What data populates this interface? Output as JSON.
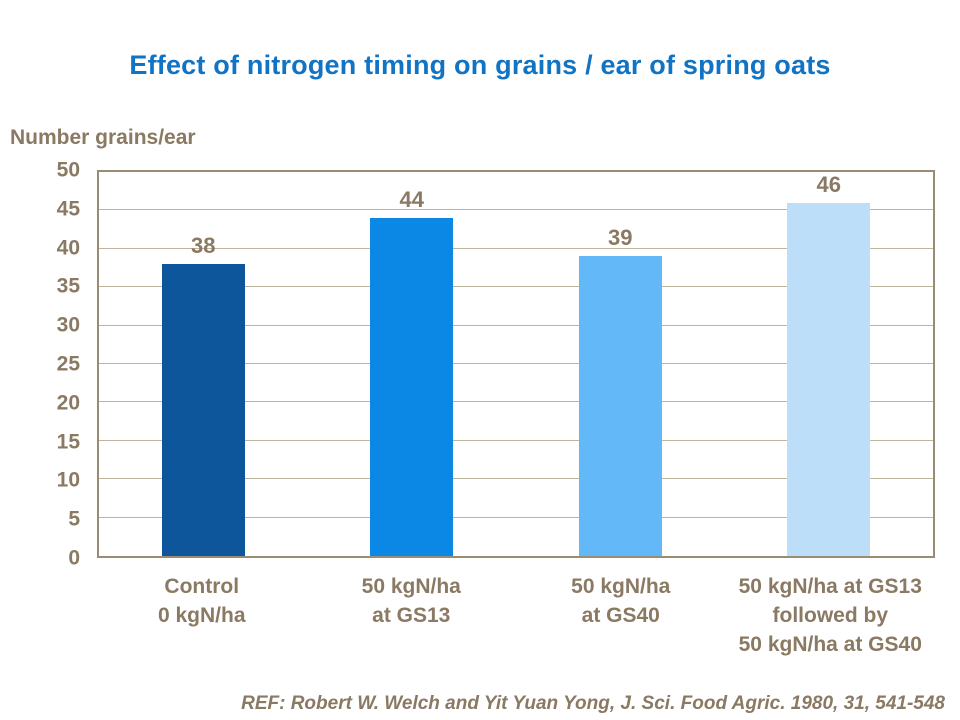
{
  "slide": {
    "title": "Effect of nitrogen timing on grains / ear of spring oats",
    "reference": "REF: Robert W. Welch and Yit Yuan Yong, J. Sci. Food Agric. 1980, 31, 541-548"
  },
  "chart_data": {
    "type": "bar",
    "title": "Effect of nitrogen timing on grains / ear of spring oats",
    "ylabel": "Number grains/ear",
    "xlabel": "",
    "ylim": [
      0,
      50
    ],
    "yticks": [
      0,
      5,
      10,
      15,
      20,
      25,
      30,
      35,
      40,
      45,
      50
    ],
    "grid": true,
    "legend": "none",
    "categories": [
      "Control\n0 kgN/ha",
      "50 kgN/ha\nat GS13",
      "50 kgN/ha\nat GS40",
      "50 kgN/ha at GS13\nfollowed by\n50 kgN/ha at GS40"
    ],
    "values": [
      38,
      44,
      39,
      46
    ],
    "bar_colors": [
      "#0D569C",
      "#0B87E6",
      "#63B8F7",
      "#BDDEF9"
    ],
    "colors": {
      "title_text": "#1173C4",
      "axis_text": "#8A7963",
      "gridline": "#BFB49E",
      "plot_border": "#9A8C72",
      "background": "#FFFFFF"
    }
  }
}
